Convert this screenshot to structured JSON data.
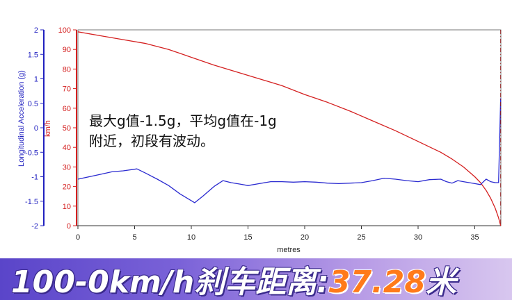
{
  "chart_data": {
    "type": "line",
    "xlabel": "metres",
    "x_range": [
      0,
      37.3
    ],
    "x_ticks": [
      "0",
      "5",
      "10",
      "15",
      "20",
      "25",
      "30",
      "35"
    ],
    "x_tick_values": [
      0,
      5,
      10,
      15,
      20,
      25,
      30,
      35
    ],
    "left_axis": {
      "label": "Longitudinal Acceleration (g)",
      "range": [
        -2,
        2
      ],
      "ticks": [
        "2",
        "1.5",
        "1",
        "0.5",
        "0",
        "-0.5",
        "-1",
        "-1.5",
        "-2"
      ],
      "tick_values": [
        2,
        1.5,
        1,
        0.5,
        0,
        -0.5,
        -1,
        -1.5,
        -2
      ],
      "color": "#1f1fbf"
    },
    "right_axis": {
      "label": "km/h",
      "range": [
        0,
        100
      ],
      "ticks": [
        "100",
        "90",
        "80",
        "70",
        "60",
        "50",
        "40",
        "30",
        "20",
        "10",
        "0"
      ],
      "tick_values": [
        100,
        90,
        80,
        70,
        60,
        50,
        40,
        30,
        20,
        10,
        0
      ],
      "color": "#d42020"
    },
    "series": [
      {
        "axis": "right",
        "color": "#d42020",
        "x": [
          0,
          2,
          4,
          6,
          8,
          10,
          12,
          14,
          16,
          18,
          20,
          22,
          24,
          26,
          28,
          30,
          32,
          33,
          34,
          35,
          35.5,
          36,
          36.4,
          36.8,
          37.1,
          37.28
        ],
        "y": [
          99,
          97,
          95,
          93,
          90,
          86,
          82,
          78.5,
          75,
          71.5,
          67,
          63,
          58.5,
          53.5,
          48.5,
          43,
          37.5,
          34,
          30,
          25,
          22,
          18,
          14,
          9,
          4,
          0
        ]
      },
      {
        "axis": "left",
        "color": "#2a2ad0",
        "x": [
          0,
          1,
          2,
          3,
          4,
          5.2,
          6,
          7,
          8,
          9,
          10.3,
          11,
          12,
          12.8,
          13.5,
          14.3,
          15,
          16,
          17,
          18,
          19,
          20,
          21,
          22,
          23,
          24,
          25,
          26,
          27,
          28,
          29,
          30,
          31,
          32,
          32.5,
          33,
          33.5,
          34,
          34.5,
          35,
          35.5,
          36,
          36.4,
          36.8,
          37.1,
          37.28
        ],
        "y": [
          -1.05,
          -1.0,
          -0.95,
          -0.9,
          -0.88,
          -0.84,
          -0.93,
          -1.05,
          -1.18,
          -1.35,
          -1.53,
          -1.4,
          -1.2,
          -1.08,
          -1.12,
          -1.15,
          -1.18,
          -1.14,
          -1.1,
          -1.1,
          -1.11,
          -1.1,
          -1.11,
          -1.13,
          -1.14,
          -1.13,
          -1.12,
          -1.08,
          -1.03,
          -1.05,
          -1.08,
          -1.1,
          -1.06,
          -1.05,
          -1.1,
          -1.13,
          -1.08,
          -1.1,
          -1.12,
          -1.14,
          -1.16,
          -1.05,
          -1.1,
          -1.12,
          -1.12,
          0.6
        ]
      }
    ],
    "marker_x": 37.28,
    "grid": false
  },
  "annotation": {
    "line1": "最大g值-1.5g，平均g值在-1g",
    "line2": "附近，初段有波动。"
  },
  "banner": {
    "prefix": "100-0km/h刹车距离:",
    "value": "37.28",
    "unit": "米"
  }
}
